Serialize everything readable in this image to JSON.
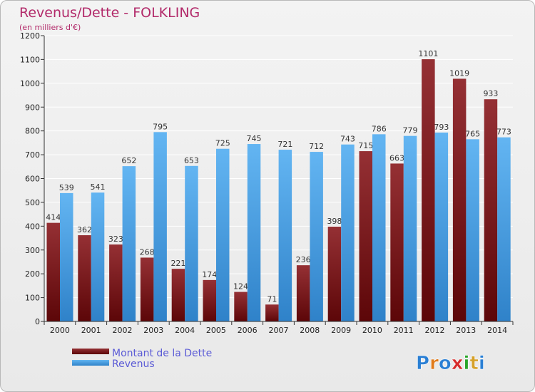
{
  "chart_data": {
    "type": "bar",
    "title": "Revenus/Dette - FOLKLING",
    "subtitle": "(en milliers d'€)",
    "categories": [
      "2000",
      "2001",
      "2002",
      "2003",
      "2004",
      "2005",
      "2006",
      "2007",
      "2008",
      "2009",
      "2010",
      "2011",
      "2012",
      "2013",
      "2014"
    ],
    "series": [
      {
        "name": "Montant de la Dette",
        "color": "#7a1a1c",
        "values": [
          414,
          362,
          323,
          268,
          221,
          174,
          124,
          71,
          236,
          398,
          715,
          663,
          1101,
          1019,
          933
        ]
      },
      {
        "name": "Revenus",
        "color": "#4a9fe0",
        "values": [
          539,
          541,
          652,
          795,
          653,
          725,
          745,
          721,
          712,
          743,
          786,
          779,
          793,
          765,
          773
        ]
      }
    ],
    "ylim": [
      0,
      1200
    ],
    "yticks": [
      0,
      100,
      200,
      300,
      400,
      500,
      600,
      700,
      800,
      900,
      1000,
      1100,
      1200
    ],
    "grid": true,
    "legend_position": "bottom-left"
  },
  "brand": {
    "name": "Proxiti"
  }
}
